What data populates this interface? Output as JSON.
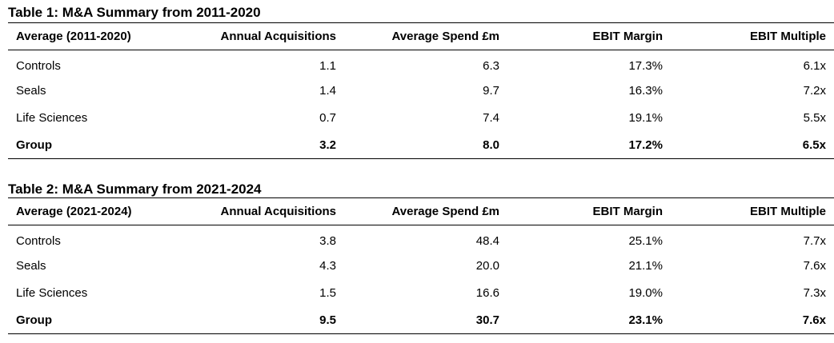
{
  "table1": {
    "title": "Table 1: M&A Summary from 2011-2020",
    "headers": [
      "Average (2011-2020)",
      "Annual Acquisitions",
      "Average Spend £m",
      "EBIT Margin",
      "EBIT Multiple"
    ],
    "rows": [
      [
        "Controls",
        "1.1",
        "6.3",
        "17.3%",
        "6.1x"
      ],
      [
        "Seals",
        "1.4",
        "9.7",
        "16.3%",
        "7.2x"
      ],
      [
        "Life Sciences",
        "0.7",
        "7.4",
        "19.1%",
        "5.5x"
      ],
      [
        "Group",
        "3.2",
        "8.0",
        "17.2%",
        "6.5x"
      ]
    ]
  },
  "table2": {
    "title": "Table 2: M&A Summary from 2021-2024",
    "headers": [
      "Average (2021-2024)",
      "Annual Acquisitions",
      "Average Spend £m",
      "EBIT Margin",
      "EBIT Multiple"
    ],
    "rows": [
      [
        "Controls",
        "3.8",
        "48.4",
        "25.1%",
        "7.7x"
      ],
      [
        "Seals",
        "4.3",
        "20.0",
        "21.1%",
        "7.6x"
      ],
      [
        "Life Sciences",
        "1.5",
        "16.6",
        "19.0%",
        "7.3x"
      ],
      [
        "Group",
        "9.5",
        "30.7",
        "23.1%",
        "7.6x"
      ]
    ]
  }
}
